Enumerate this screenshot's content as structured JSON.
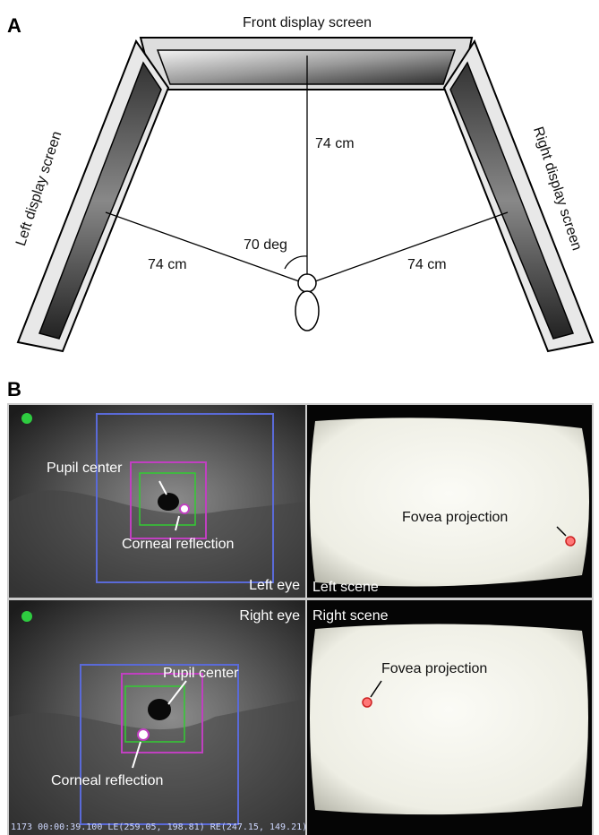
{
  "panel_a": {
    "label": "A",
    "front_screen": "Front display screen",
    "left_screen": "Left display screen",
    "right_screen": "Right display screen",
    "distance_front": "74 cm",
    "distance_left": "74 cm",
    "distance_right": "74 cm",
    "angle": "70 deg"
  },
  "panel_b": {
    "label": "B",
    "left_eye": {
      "title": "Left eye",
      "pupil": "Pupil center",
      "reflection": "Corneal reflection"
    },
    "left_scene": {
      "title": "Left scene",
      "fovea": "Fovea projection"
    },
    "right_eye": {
      "title": "Right eye",
      "pupil": "Pupil center",
      "reflection": "Corneal reflection",
      "status": "1173 00:00:39.100 LE(259.05, 198.81)  RE(247.15, 149.21)"
    },
    "right_scene": {
      "title": "Right scene",
      "fovea": "Fovea projection"
    }
  }
}
